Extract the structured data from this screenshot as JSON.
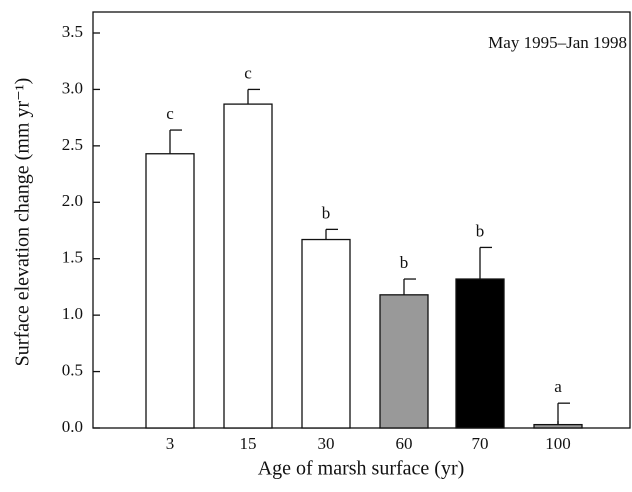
{
  "chart_data": {
    "type": "bar",
    "annotation": "May 1995–Jan 1998",
    "xlabel": "Age of marsh surface (yr)",
    "ylabel": "Surface elevation change (mm yr⁻¹)",
    "categories": [
      "3",
      "15",
      "30",
      "60",
      "70",
      "100"
    ],
    "values": [
      2.43,
      2.87,
      1.67,
      1.18,
      1.32,
      0.03
    ],
    "errors": [
      0.21,
      0.13,
      0.09,
      0.14,
      0.28,
      0.19
    ],
    "letters": [
      "c",
      "c",
      "b",
      "b",
      "b",
      "a"
    ],
    "colors": [
      "#ffffff",
      "#ffffff",
      "#ffffff",
      "#999999",
      "#000000",
      "#999999"
    ],
    "ylim": [
      0,
      3.5
    ],
    "yticks": [
      {
        "value": 0,
        "label": "0.0"
      },
      0.5,
      {
        "value": 1,
        "label": "1.0"
      },
      1.5,
      {
        "value": 2,
        "label": "2.0"
      },
      2.5,
      {
        "value": 3,
        "label": "3.0"
      },
      3.5
    ]
  }
}
